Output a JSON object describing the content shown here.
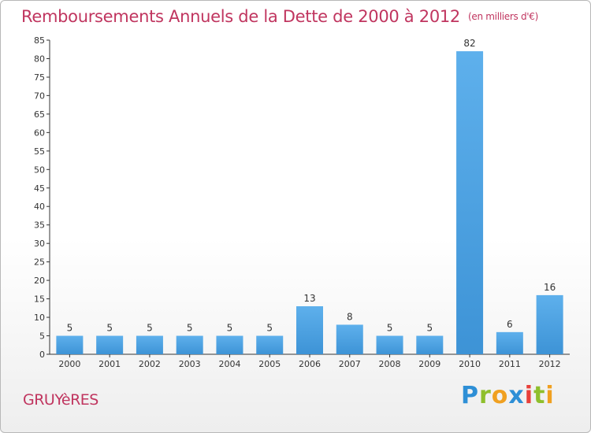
{
  "header": {
    "title": "Remboursements Annuels de la Dette de 2000 à 2012",
    "unit": "(en milliers d'€)"
  },
  "footer": {
    "town": "GRUYèRES",
    "logo": [
      "P",
      "r",
      "o",
      "x",
      "i",
      "t",
      "i"
    ]
  },
  "chart_data": {
    "type": "bar",
    "title": "Remboursements Annuels de la Dette de 2000 à 2012",
    "subtitle": "(en milliers d'€)",
    "xlabel": "",
    "ylabel": "",
    "categories": [
      "2000",
      "2001",
      "2002",
      "2003",
      "2004",
      "2005",
      "2006",
      "2007",
      "2008",
      "2009",
      "2010",
      "2011",
      "2012"
    ],
    "values": [
      5,
      5,
      5,
      5,
      5,
      5,
      13,
      8,
      5,
      5,
      82,
      6,
      16
    ],
    "ylim": [
      0,
      85
    ],
    "yticks": [
      0,
      5,
      10,
      15,
      20,
      25,
      30,
      35,
      40,
      45,
      50,
      55,
      60,
      65,
      70,
      75,
      80,
      85
    ],
    "grid": false,
    "legend": "none",
    "bar_color": "#3d93d6",
    "bar_color_light": "#5eb0ec"
  }
}
